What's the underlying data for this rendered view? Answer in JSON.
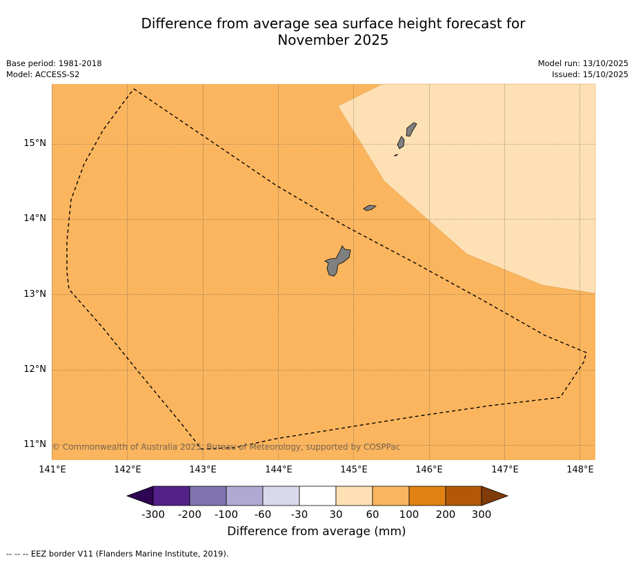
{
  "title": {
    "line1": "Difference from average sea surface height forecast for",
    "line2": "November 2025"
  },
  "meta": {
    "base_period": "Base period: 1981-2018",
    "model": "Model: ACCESS-S2",
    "model_run": "Model run: 13/10/2025",
    "issued": "Issued: 15/10/2025"
  },
  "map": {
    "x_ticks": [
      "141°E",
      "142°E",
      "143°E",
      "144°E",
      "145°E",
      "146°E",
      "147°E",
      "148°E"
    ],
    "y_ticks": [
      "15°N",
      "14°N",
      "13°N",
      "12°N",
      "11°N"
    ],
    "copyright": "© Commonwealth of Australia 2025, Bureau of Meteorology, supported by COSPPac",
    "colors": {
      "ocean_60_100": "#fab55e",
      "ocean_30_60": "#fde0b3",
      "land": "#808080",
      "eez_border": "#000000"
    }
  },
  "colorbar": {
    "labels": [
      "-300",
      "-200",
      "-100",
      "-60",
      "-30",
      "30",
      "60",
      "100",
      "200",
      "300"
    ],
    "colors": [
      "#2d0552",
      "#542189",
      "#8073b0",
      "#b0a9d1",
      "#d8d9eb",
      "#ffffff",
      "#fde0b3",
      "#fab55e",
      "#e08213",
      "#b35906",
      "#7f3b08"
    ],
    "title": "Difference from average (mm)"
  },
  "footnote": "--  --  -- EEZ border V11 (Flanders Marine Institute, 2019)."
}
